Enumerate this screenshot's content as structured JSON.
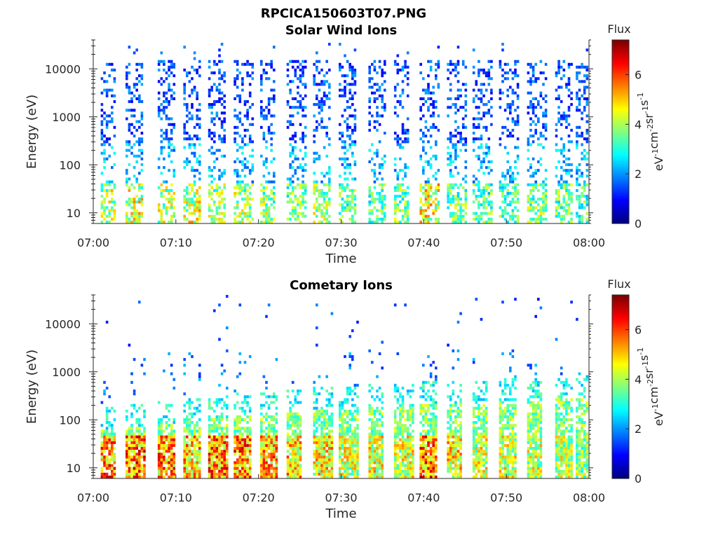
{
  "figure": {
    "suptitle": "RPCICA150603T07.PNG"
  },
  "colors": {
    "colormap": "jet",
    "axis": "#262626"
  },
  "chart_data": [
    {
      "type": "heatmap",
      "title": "Solar Wind Ions",
      "xlabel": "Time",
      "ylabel": "Energy (eV)",
      "x_range": [
        "07:00",
        "08:00"
      ],
      "x_ticks": [
        "07:00",
        "07:10",
        "07:20",
        "07:30",
        "07:40",
        "07:50",
        "08:00"
      ],
      "y_scale": "log",
      "y_range": [
        6,
        40000
      ],
      "y_ticks": [
        "10",
        "100",
        "1000",
        "10000"
      ],
      "colorbar": {
        "label": "Flux",
        "unit_parts": [
          "eV",
          "-1",
          "cm",
          "-2",
          "sr",
          "-1",
          "s",
          "-1"
        ],
        "range": [
          0,
          7.4
        ],
        "ticks": [
          "0",
          "2",
          "4",
          "6"
        ]
      },
      "sweeps_start_minutes": [
        0.9,
        3.9,
        7.8,
        10.9,
        13.9,
        17.0,
        20.2,
        23.4,
        26.6,
        29.7,
        33.3,
        36.4,
        39.5,
        42.8,
        45.9,
        49.1,
        52.5,
        55.9,
        58.4
      ],
      "peak_flux_by_sweep": [
        5.3,
        5.6,
        5.2,
        5.6,
        5.0,
        5.2,
        5.0,
        4.8,
        5.1,
        4.6,
        4.5,
        4.8,
        5.8,
        4.8,
        4.4,
        4.3,
        4.8,
        4.6,
        4.3
      ]
    },
    {
      "type": "heatmap",
      "title": "Cometary Ions",
      "xlabel": "Time",
      "ylabel": "Energy (eV)",
      "x_range": [
        "07:00",
        "08:00"
      ],
      "x_ticks": [
        "07:00",
        "07:10",
        "07:20",
        "07:30",
        "07:40",
        "07:50",
        "08:00"
      ],
      "y_scale": "log",
      "y_range": [
        6,
        40000
      ],
      "y_ticks": [
        "10",
        "100",
        "1000",
        "10000"
      ],
      "colorbar": {
        "label": "Flux",
        "unit_parts": [
          "eV",
          "-1",
          "cm",
          "-2",
          "sr",
          "-1",
          "s",
          "-1"
        ],
        "range": [
          0,
          7.4
        ],
        "ticks": [
          "0",
          "2",
          "4",
          "6"
        ]
      },
      "sweeps_start_minutes": [
        0.9,
        3.9,
        7.8,
        10.9,
        13.9,
        17.0,
        20.2,
        23.4,
        26.6,
        29.7,
        33.3,
        36.4,
        39.5,
        42.8,
        45.9,
        49.1,
        52.5,
        55.9,
        58.4
      ],
      "peak_flux_by_sweep": [
        7.0,
        7.1,
        6.9,
        6.4,
        6.9,
        7.0,
        6.6,
        6.2,
        6.0,
        5.5,
        5.7,
        5.6,
        7.1,
        5.9,
        5.5,
        5.5,
        5.4,
        5.2,
        4.9
      ]
    }
  ]
}
